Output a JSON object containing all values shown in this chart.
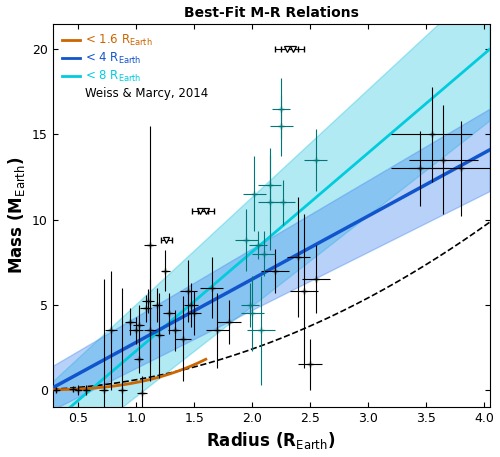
{
  "title": "Best-Fit M-R Relations",
  "xlim": [
    0.28,
    4.05
  ],
  "ylim": [
    -1.0,
    21.5
  ],
  "xticks": [
    0.5,
    1.0,
    1.5,
    2.0,
    2.5,
    3.0,
    3.5,
    4.0
  ],
  "yticks": [
    0,
    5,
    10,
    15,
    20
  ],
  "color_orange": "#CC6600",
  "color_blue": "#1155CC",
  "color_cyan": "#00CCDD",
  "color_blue_band": "#4488EE",
  "color_cyan_band": "#00BBDD",
  "blue_line": {
    "slope": 4.0,
    "intercept": -1.1
  },
  "cyan_line": {
    "slope": 5.2,
    "intercept": -1.5
  },
  "data_points_black": [
    {
      "r": 0.31,
      "m": 0.02,
      "re": 0.03,
      "me_lo": 0.08,
      "me_hi": 0.08,
      "upper_limit": false
    },
    {
      "r": 0.45,
      "m": 0.05,
      "re": 0.03,
      "me_lo": 0.1,
      "me_hi": 0.1,
      "upper_limit": false
    },
    {
      "r": 0.5,
      "m": 0.0,
      "re": 0.03,
      "me_lo": 0.3,
      "me_hi": 0.3,
      "upper_limit": false
    },
    {
      "r": 0.57,
      "m": 0.0,
      "re": 0.03,
      "me_lo": 0.3,
      "me_hi": 0.3,
      "upper_limit": false
    },
    {
      "r": 0.72,
      "m": 0.0,
      "re": 0.04,
      "me_lo": 6.5,
      "me_hi": 6.5,
      "upper_limit": false
    },
    {
      "r": 0.78,
      "m": 3.5,
      "re": 0.05,
      "me_lo": 3.5,
      "me_hi": 3.5,
      "upper_limit": false
    },
    {
      "r": 0.88,
      "m": 0.0,
      "re": 0.04,
      "me_lo": 6.0,
      "me_hi": 6.0,
      "upper_limit": false
    },
    {
      "r": 0.95,
      "m": 4.0,
      "re": 0.05,
      "me_lo": 0.8,
      "me_hi": 0.8,
      "upper_limit": false
    },
    {
      "r": 1.0,
      "m": 3.5,
      "re": 0.06,
      "me_lo": 0.8,
      "me_hi": 0.8,
      "upper_limit": false
    },
    {
      "r": 1.02,
      "m": 1.8,
      "re": 0.04,
      "me_lo": 0.8,
      "me_hi": 0.8,
      "upper_limit": false
    },
    {
      "r": 1.02,
      "m": 3.8,
      "re": 0.05,
      "me_lo": 1.2,
      "me_hi": 1.2,
      "upper_limit": false
    },
    {
      "r": 1.05,
      "m": -0.2,
      "re": 0.04,
      "me_lo": 1.0,
      "me_hi": 1.0,
      "upper_limit": false
    },
    {
      "r": 1.08,
      "m": 4.8,
      "re": 0.05,
      "me_lo": 0.8,
      "me_hi": 0.8,
      "upper_limit": false
    },
    {
      "r": 1.1,
      "m": 5.2,
      "re": 0.05,
      "me_lo": 0.7,
      "me_hi": 0.7,
      "upper_limit": false
    },
    {
      "r": 1.12,
      "m": 3.5,
      "re": 0.05,
      "me_lo": 3.0,
      "me_hi": 3.0,
      "upper_limit": false
    },
    {
      "r": 1.12,
      "m": 8.5,
      "re": 0.05,
      "me_lo": 7.0,
      "me_hi": 7.0,
      "upper_limit": false
    },
    {
      "r": 1.18,
      "m": 5.0,
      "re": 0.04,
      "me_lo": 1.0,
      "me_hi": 1.0,
      "upper_limit": false
    },
    {
      "r": 1.2,
      "m": 3.2,
      "re": 0.04,
      "me_lo": 2.5,
      "me_hi": 2.5,
      "upper_limit": false
    },
    {
      "r": 1.25,
      "m": 7.0,
      "re": 0.04,
      "me_lo": 1.2,
      "me_hi": 1.2,
      "upper_limit": false
    },
    {
      "r": 1.26,
      "m": 8.8,
      "re": 0.05,
      "me_lo": 2.0,
      "me_hi": 2.0,
      "upper_limit": true
    },
    {
      "r": 1.28,
      "m": 4.5,
      "re": 0.05,
      "me_lo": 1.2,
      "me_hi": 1.2,
      "upper_limit": false
    },
    {
      "r": 1.33,
      "m": 3.5,
      "re": 0.06,
      "me_lo": 1.2,
      "me_hi": 1.2,
      "upper_limit": false
    },
    {
      "r": 1.4,
      "m": 3.0,
      "re": 0.07,
      "me_lo": 2.5,
      "me_hi": 2.5,
      "upper_limit": false
    },
    {
      "r": 1.45,
      "m": 5.8,
      "re": 0.07,
      "me_lo": 1.8,
      "me_hi": 1.8,
      "upper_limit": false
    },
    {
      "r": 1.47,
      "m": 5.0,
      "re": 0.06,
      "me_lo": 1.3,
      "me_hi": 1.3,
      "upper_limit": false
    },
    {
      "r": 1.5,
      "m": 4.5,
      "re": 0.06,
      "me_lo": 1.3,
      "me_hi": 1.3,
      "upper_limit": false
    },
    {
      "r": 1.55,
      "m": 10.5,
      "re": 0.07,
      "me_lo": 2.0,
      "me_hi": 2.0,
      "upper_limit": true
    },
    {
      "r": 1.6,
      "m": 10.5,
      "re": 0.07,
      "me_lo": 2.5,
      "me_hi": 2.5,
      "upper_limit": true
    },
    {
      "r": 1.65,
      "m": 6.0,
      "re": 0.1,
      "me_lo": 1.8,
      "me_hi": 1.8,
      "upper_limit": false
    },
    {
      "r": 1.7,
      "m": 3.5,
      "re": 0.1,
      "me_lo": 2.2,
      "me_hi": 2.2,
      "upper_limit": false
    },
    {
      "r": 1.8,
      "m": 4.0,
      "re": 0.1,
      "me_lo": 1.3,
      "me_hi": 1.3,
      "upper_limit": false
    },
    {
      "r": 2.2,
      "m": 7.0,
      "re": 0.12,
      "me_lo": 1.3,
      "me_hi": 1.3,
      "upper_limit": false
    },
    {
      "r": 2.3,
      "m": 20.0,
      "re": 0.1,
      "me_lo": 0.0,
      "me_hi": 0.0,
      "upper_limit": true
    },
    {
      "r": 2.35,
      "m": 20.0,
      "re": 0.1,
      "me_lo": 0.0,
      "me_hi": 0.0,
      "upper_limit": true
    },
    {
      "r": 2.4,
      "m": 7.8,
      "re": 0.1,
      "me_lo": 3.5,
      "me_hi": 3.5,
      "upper_limit": false
    },
    {
      "r": 2.45,
      "m": 5.8,
      "re": 0.12,
      "me_lo": 4.5,
      "me_hi": 4.5,
      "upper_limit": false
    },
    {
      "r": 2.5,
      "m": 1.5,
      "re": 0.1,
      "me_lo": 1.5,
      "me_hi": 1.5,
      "upper_limit": false
    },
    {
      "r": 2.55,
      "m": 6.5,
      "re": 0.12,
      "me_lo": 2.0,
      "me_hi": 2.0,
      "upper_limit": false
    },
    {
      "r": 3.45,
      "m": 13.0,
      "re": 0.25,
      "me_lo": 2.2,
      "me_hi": 2.2,
      "upper_limit": false
    },
    {
      "r": 3.55,
      "m": 15.0,
      "re": 0.35,
      "me_lo": 2.8,
      "me_hi": 2.8,
      "upper_limit": false
    },
    {
      "r": 3.65,
      "m": 13.5,
      "re": 0.3,
      "me_lo": 3.2,
      "me_hi": 3.2,
      "upper_limit": false
    },
    {
      "r": 3.8,
      "m": 13.0,
      "re": 0.45,
      "me_lo": 2.8,
      "me_hi": 2.8,
      "upper_limit": false
    }
  ],
  "data_points_teal": [
    {
      "r": 1.95,
      "m": 8.8,
      "re": 0.1,
      "me_lo": 1.8,
      "me_hi": 1.8,
      "upper_limit": false
    },
    {
      "r": 1.98,
      "m": 5.0,
      "re": 0.08,
      "me_lo": 1.3,
      "me_hi": 1.3,
      "upper_limit": false
    },
    {
      "r": 2.0,
      "m": 4.5,
      "re": 0.1,
      "me_lo": 2.2,
      "me_hi": 2.2,
      "upper_limit": false
    },
    {
      "r": 2.02,
      "m": 11.5,
      "re": 0.1,
      "me_lo": 2.2,
      "me_hi": 2.2,
      "upper_limit": false
    },
    {
      "r": 2.05,
      "m": 8.5,
      "re": 0.08,
      "me_lo": 0.8,
      "me_hi": 0.8,
      "upper_limit": false
    },
    {
      "r": 2.08,
      "m": 3.5,
      "re": 0.12,
      "me_lo": 3.2,
      "me_hi": 3.2,
      "upper_limit": false
    },
    {
      "r": 2.1,
      "m": 8.0,
      "re": 0.1,
      "me_lo": 1.3,
      "me_hi": 1.3,
      "upper_limit": false
    },
    {
      "r": 2.15,
      "m": 12.0,
      "re": 0.1,
      "me_lo": 2.2,
      "me_hi": 2.2,
      "upper_limit": false
    },
    {
      "r": 2.15,
      "m": 11.0,
      "re": 0.1,
      "me_lo": 2.8,
      "me_hi": 2.8,
      "upper_limit": false
    },
    {
      "r": 2.25,
      "m": 15.5,
      "re": 0.1,
      "me_lo": 1.8,
      "me_hi": 1.8,
      "upper_limit": false
    },
    {
      "r": 2.25,
      "m": 16.5,
      "re": 0.08,
      "me_lo": 1.8,
      "me_hi": 1.8,
      "upper_limit": false
    },
    {
      "r": 2.27,
      "m": 11.0,
      "re": 0.1,
      "me_lo": 1.3,
      "me_hi": 1.3,
      "upper_limit": false
    },
    {
      "r": 2.55,
      "m": 13.5,
      "re": 0.1,
      "me_lo": 1.8,
      "me_hi": 1.8,
      "upper_limit": false
    }
  ],
  "bg_color": "#FFFFFF"
}
